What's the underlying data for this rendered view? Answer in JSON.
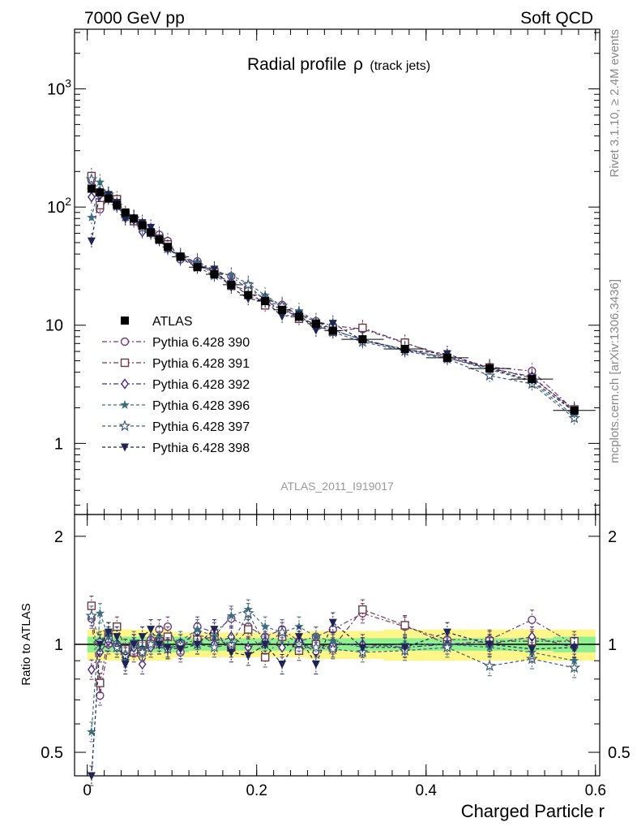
{
  "header": {
    "left": "7000 GeV pp",
    "right": "Soft QCD"
  },
  "side_labels": {
    "rivet": "Rivet 3.1.10, ≥ 2.4M events",
    "mcplots": "mcplots.cern.ch [arXiv:1306.3436]"
  },
  "chart_data": {
    "type": "scatter",
    "title_main": "Radial profile",
    "title_symbol": "ρ",
    "title_sub": "(track jets)",
    "watermark": "ATLAS_2011_I919017",
    "xlabel": "Charged Particle r",
    "ylabel_ratio": "Ratio to ATLAS",
    "xlim": [
      -0.015,
      0.605
    ],
    "ylim_main": [
      0.25,
      3200
    ],
    "ylog": true,
    "ylim_ratio": [
      0.43,
      2.3
    ],
    "ratio_log": true,
    "x_ticks": [
      0,
      0.2,
      0.4,
      0.6
    ],
    "x_tick_labels": [
      "0",
      "0.2",
      "0.4",
      "0.6"
    ],
    "main_y_ticks": [
      1,
      10,
      100,
      1000
    ],
    "main_y_tick_labels": [
      "1",
      "10",
      "10",
      "10"
    ],
    "main_y_tick_exponents": [
      "",
      "",
      "2",
      "3"
    ],
    "ratio_y_ticks": [
      0.5,
      1,
      2
    ],
    "ratio_y_tick_labels": [
      "0.5",
      "1",
      "2"
    ],
    "legend_position": "left-middle",
    "x": [
      0.005,
      0.015,
      0.025,
      0.035,
      0.045,
      0.055,
      0.065,
      0.075,
      0.085,
      0.095,
      0.11,
      0.13,
      0.15,
      0.17,
      0.19,
      0.21,
      0.23,
      0.25,
      0.27,
      0.29,
      0.325,
      0.375,
      0.425,
      0.475,
      0.525,
      0.575
    ],
    "x_err": [
      0.005,
      0.005,
      0.005,
      0.005,
      0.005,
      0.005,
      0.005,
      0.005,
      0.005,
      0.005,
      0.01,
      0.01,
      0.01,
      0.01,
      0.01,
      0.01,
      0.01,
      0.01,
      0.01,
      0.01,
      0.025,
      0.025,
      0.025,
      0.025,
      0.025,
      0.025
    ],
    "data": {
      "name": "ATLAS",
      "values": [
        143,
        133,
        118,
        104,
        90,
        80,
        70,
        61,
        53,
        46,
        38,
        31,
        27,
        22,
        18,
        16,
        13.5,
        11.8,
        10.3,
        9.0,
        7.6,
        6.3,
        5.3,
        4.3,
        3.5,
        1.9
      ],
      "band_inner": [
        0.05,
        0.05,
        0.05,
        0.05,
        0.05,
        0.05,
        0.05,
        0.05,
        0.05,
        0.05,
        0.05,
        0.04,
        0.04,
        0.04,
        0.04,
        0.04,
        0.04,
        0.04,
        0.04,
        0.04,
        0.04,
        0.04,
        0.04,
        0.04,
        0.04,
        0.05
      ],
      "band_outer": [
        0.1,
        0.1,
        0.1,
        0.1,
        0.1,
        0.1,
        0.1,
        0.1,
        0.1,
        0.1,
        0.08,
        0.08,
        0.08,
        0.08,
        0.08,
        0.08,
        0.08,
        0.08,
        0.09,
        0.09,
        0.09,
        0.1,
        0.1,
        0.1,
        0.1,
        0.1
      ]
    },
    "series": [
      {
        "name": "Pythia 6.428 390",
        "color": "#6e3a7a",
        "marker": "circle-open",
        "dash": "6,3,2,3",
        "ratio": [
          1.18,
          0.72,
          1.0,
          1.0,
          0.97,
          1.0,
          0.95,
          1.03,
          1.1,
          1.12,
          0.95,
          1.12,
          1.08,
          1.18,
          1.12,
          1.05,
          1.1,
          1.02,
          1.05,
          1.1,
          1.22,
          1.12,
          1.03,
          1.03,
          1.17,
          1.0
        ]
      },
      {
        "name": "Pythia 6.428 391",
        "color": "#6a3a46",
        "marker": "square-open",
        "dash": "6,3,2,3",
        "ratio": [
          1.28,
          0.78,
          1.05,
          1.12,
          0.97,
          0.95,
          1.0,
          1.0,
          1.02,
          1.05,
          1.0,
          1.03,
          1.05,
          0.98,
          1.1,
          0.92,
          1.05,
          0.96,
          1.0,
          0.98,
          1.25,
          1.13,
          1.0,
          1.02,
          1.02,
          1.02
        ]
      },
      {
        "name": "Pythia 6.428 392",
        "color": "#4a2a82",
        "marker": "diamond-open",
        "dash": "6,3,2,3",
        "ratio": [
          0.85,
          0.95,
          1.02,
          0.98,
          0.92,
          0.98,
          0.88,
          0.98,
          1.0,
          0.97,
          1.0,
          1.08,
          1.0,
          1.05,
          0.98,
          1.02,
          0.98,
          1.02,
          0.95,
          1.0,
          1.0,
          0.98,
          1.0,
          1.0,
          1.05,
          0.98
        ]
      },
      {
        "name": "Pythia 6.428 396",
        "color": "#3c6e7e",
        "marker": "star-filled",
        "dash": "4,3",
        "ratio": [
          0.57,
          1.22,
          1.05,
          1.0,
          0.9,
          1.02,
          0.98,
          1.0,
          1.05,
          0.97,
          1.02,
          1.1,
          1.05,
          1.2,
          1.25,
          1.12,
          1.08,
          1.12,
          1.05,
          1.02,
          0.98,
          1.0,
          1.0,
          0.98,
          0.95,
          0.9
        ]
      },
      {
        "name": "Pythia 6.428 397",
        "color": "#3e5a78",
        "marker": "star-open",
        "dash": "4,3",
        "ratio": [
          1.2,
          1.02,
          1.08,
          0.98,
          0.93,
          1.0,
          0.95,
          1.0,
          1.0,
          0.97,
          1.0,
          1.0,
          0.98,
          1.0,
          1.22,
          1.0,
          1.08,
          1.0,
          0.98,
          0.97,
          0.95,
          0.96,
          0.98,
          0.87,
          0.91,
          0.86
        ]
      },
      {
        "name": "Pythia 6.428 398",
        "color": "#1e2550",
        "marker": "triangle-down-filled",
        "dash": "4,3",
        "ratio": [
          0.36,
          1.0,
          1.08,
          1.05,
          0.88,
          1.0,
          1.05,
          1.1,
          1.0,
          0.98,
          0.97,
          1.0,
          1.1,
          0.95,
          0.93,
          1.0,
          0.88,
          1.05,
          0.88,
          1.15,
          0.98,
          0.98,
          1.08,
          1.0,
          0.97,
          0.98
        ]
      }
    ]
  }
}
